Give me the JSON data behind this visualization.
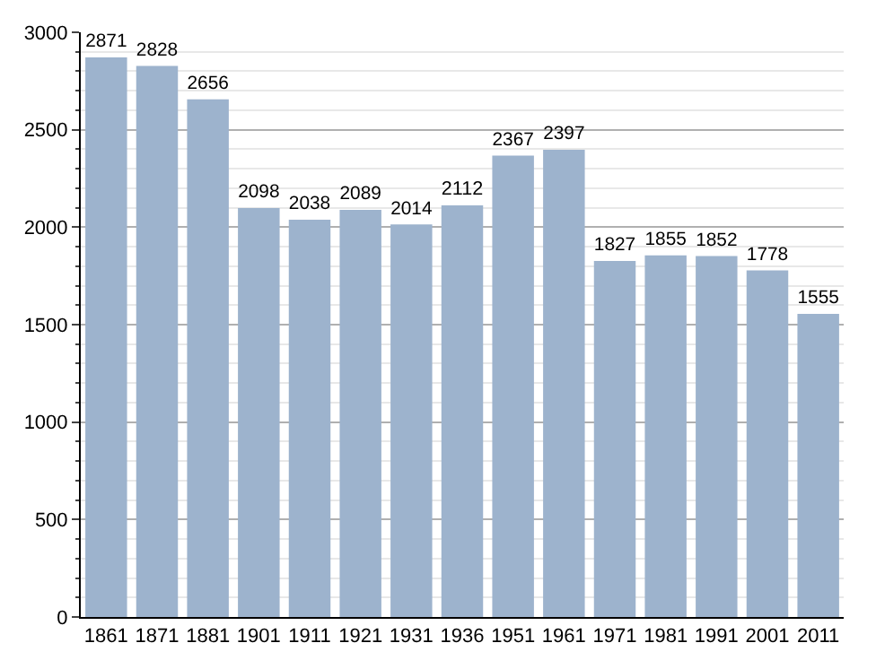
{
  "chart_data": {
    "type": "bar",
    "categories": [
      "1861",
      "1871",
      "1881",
      "1901",
      "1911",
      "1921",
      "1931",
      "1936",
      "1951",
      "1961",
      "1971",
      "1981",
      "1991",
      "2001",
      "2011"
    ],
    "values": [
      2871,
      2828,
      2656,
      2098,
      2038,
      2089,
      2014,
      2112,
      2367,
      2397,
      1827,
      1855,
      1852,
      1778,
      1555
    ],
    "color": "#9db3cd",
    "ylim": [
      0,
      3000
    ],
    "yticks": [
      0,
      500,
      1000,
      1500,
      2000,
      2500,
      3000
    ],
    "grid": "y",
    "data_labels": true
  }
}
